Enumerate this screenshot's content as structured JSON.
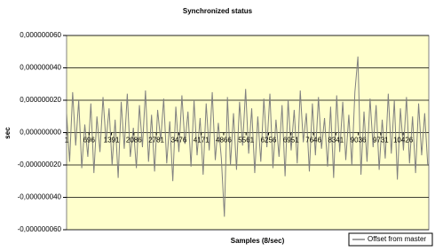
{
  "chart_data": {
    "type": "line",
    "title": "Synchronized status",
    "x_label": "Samples (8/sec)",
    "y_label": "sec",
    "x": [
      1,
      95,
      189,
      283,
      377,
      471,
      565,
      659,
      753,
      847,
      941,
      1035,
      1129,
      1223,
      1317,
      1411,
      1505,
      1599,
      1693,
      1787,
      1881,
      1975,
      2069,
      2163,
      2257,
      2351,
      2445,
      2539,
      2633,
      2727,
      2821,
      2915,
      3009,
      3103,
      3197,
      3291,
      3385,
      3479,
      3573,
      3667,
      3761,
      3855,
      3949,
      4043,
      4137,
      4231,
      4325,
      4419,
      4513,
      4607,
      4701,
      4795,
      4889,
      4983,
      5077,
      5171,
      5265,
      5359,
      5453,
      5547,
      5641,
      5735,
      5829,
      5923,
      6017,
      6111,
      6205,
      6299,
      6393,
      6487,
      6581,
      6675,
      6769,
      6863,
      6957,
      7051,
      7145,
      7239,
      7333,
      7427,
      7521,
      7615,
      7709,
      7803,
      7897,
      7991,
      8085,
      8179,
      8273,
      8367,
      8461,
      8555,
      8649,
      8743,
      8837,
      8931,
      9025,
      9119,
      9213,
      9307,
      9401,
      9495,
      9589,
      9683,
      9777,
      9871,
      9965,
      10059,
      10153,
      10247,
      10341,
      10435,
      10529,
      10623,
      10717,
      10811,
      10905,
      10999,
      11093,
      11187
    ],
    "series": [
      {
        "name": "Offset from master",
        "color": "#808080",
        "values": [
          1.2e-08,
          -1.8e-08,
          2.5e-08,
          -8e-09,
          2e-08,
          -2.2e-08,
          5e-09,
          -1.5e-08,
          1.8e-08,
          -2.5e-08,
          1e-08,
          -1.2e-08,
          2.2e-08,
          -6e-09,
          1.5e-08,
          -2e-08,
          8e-09,
          -2.8e-08,
          1.9e-08,
          -1e-08,
          2.4e-08,
          -1.5e-08,
          3e-09,
          -2.2e-08,
          1.7e-08,
          -9e-09,
          2.6e-08,
          -1.8e-08,
          1.1e-08,
          -2.4e-08,
          1.4e-08,
          -5e-09,
          2.1e-08,
          -1.9e-08,
          7e-09,
          -3e-08,
          1.6e-08,
          -1.2e-08,
          2.3e-08,
          -7e-09,
          1.3e-08,
          -2.1e-08,
          2e-08,
          -1.4e-08,
          9e-09,
          -2.6e-08,
          1.8e-08,
          -1.1e-08,
          2.5e-08,
          -1.7e-08,
          6e-09,
          -1.6e-08,
          -5.2e-08,
          2.2e-08,
          -2e-08,
          1.2e-08,
          -2.3e-08,
          1.9e-08,
          -8e-09,
          2.7e-08,
          -1.3e-08,
          1.5e-08,
          -2.5e-08,
          1e-08,
          -1.8e-08,
          2.1e-08,
          -9e-09,
          2.4e-08,
          -2.2e-08,
          8e-09,
          -1.5e-08,
          1.7e-08,
          -2.7e-08,
          2e-08,
          -1.1e-08,
          1.4e-08,
          -1.9e-08,
          2.6e-08,
          -6e-09,
          1.2e-08,
          -2.4e-08,
          1.8e-08,
          -1.4e-08,
          2.2e-08,
          -1e-08,
          9e-09,
          -2.1e-08,
          1.6e-08,
          -2.8e-08,
          2.3e-08,
          -1.2e-08,
          1.9e-08,
          -1.7e-08,
          1.1e-08,
          -2e-08,
          2.5e-08,
          4.7e-08,
          -2.6e-08,
          1.3e-08,
          -1.8e-08,
          2.1e-08,
          -9e-09,
          1.7e-08,
          -2.3e-08,
          8e-09,
          -1.6e-08,
          2.4e-08,
          -1.3e-08,
          2e-08,
          -2.9e-08,
          1.5e-08,
          -1.1e-08,
          2.2e-08,
          -1.9e-08,
          1e-08,
          -2.5e-08,
          1.8e-08,
          -1.4e-08,
          1.2e-08,
          -2e-08
        ]
      }
    ],
    "xlim": [
      1,
      11220
    ],
    "xticks": [
      1,
      696,
      1391,
      2086,
      2781,
      3476,
      4171,
      4866,
      5561,
      6256,
      6951,
      7646,
      8341,
      9036,
      9731,
      10426
    ],
    "ylim": [
      -6e-08,
      6e-08
    ],
    "yticks": [
      {
        "value": -6e-08,
        "label": "-0,000000060"
      },
      {
        "value": -4e-08,
        "label": "-0,000000040"
      },
      {
        "value": -2e-08,
        "label": "-0,000000020"
      },
      {
        "value": 0,
        "label": "0,000000000"
      },
      {
        "value": 2e-08,
        "label": "0,000000020"
      },
      {
        "value": 4e-08,
        "label": "0,000000040"
      },
      {
        "value": 6e-08,
        "label": "0,000000060"
      }
    ],
    "grid": true,
    "legend": "lower right"
  }
}
